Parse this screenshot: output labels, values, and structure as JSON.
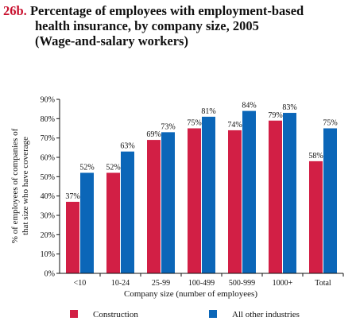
{
  "figure": {
    "number": "26b.",
    "title_line1": "Percentage of employees with employment-based",
    "title_line2": "health insurance, by company size, 2005",
    "title_line3": "(Wage-and-salary workers)"
  },
  "chart_data": {
    "type": "bar",
    "title": "Percentage of employees with employment-based health insurance, by company size, 2005 (Wage-and-salary workers)",
    "xlabel": "Company size (number of employees)",
    "ylabel_line1": "% of employees of companies of",
    "ylabel_line2": "that size who have coverage",
    "categories": [
      "<10",
      "10-24",
      "25-99",
      "100-499",
      "500-999",
      "1000+",
      "Total"
    ],
    "ylim": [
      0,
      90
    ],
    "yticks": [
      0,
      10,
      20,
      30,
      40,
      50,
      60,
      70,
      80,
      90
    ],
    "ytick_labels": [
      "0%",
      "10%",
      "20%",
      "30%",
      "40%",
      "50%",
      "60%",
      "70%",
      "80%",
      "90%"
    ],
    "grid": false,
    "legend_position": "bottom",
    "series": [
      {
        "name": "Construction",
        "color": "#d21f45",
        "values": [
          37,
          52,
          69,
          75,
          74,
          79,
          58
        ],
        "labels": [
          "37%",
          "52%",
          "69%",
          "75%",
          "74%",
          "79%",
          "58%"
        ]
      },
      {
        "name": "All other industries",
        "color": "#0b66b8",
        "values": [
          52,
          63,
          73,
          81,
          84,
          83,
          75
        ],
        "labels": [
          "52%",
          "63%",
          "73%",
          "81%",
          "84%",
          "83%",
          "75%"
        ]
      }
    ]
  }
}
